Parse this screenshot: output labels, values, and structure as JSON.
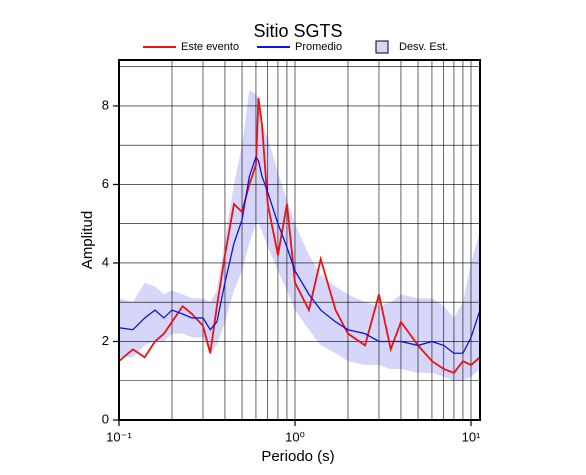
{
  "chart_data": {
    "type": "line",
    "title": "Sitio SGTS",
    "xlabel": "Periodo (s)",
    "ylabel": "Amplitud",
    "xscale": "log",
    "xlim": [
      0.1,
      11.25
    ],
    "ylim": [
      0,
      9.17
    ],
    "xticks": [
      {
        "value": 0.1,
        "label": "10⁻¹"
      },
      {
        "value": 1,
        "label": "10⁰"
      },
      {
        "value": 10,
        "label": "10¹"
      }
    ],
    "yticks": [
      0,
      2,
      4,
      6,
      8
    ],
    "x_gridlines": [
      0.2,
      0.3,
      0.4,
      0.5,
      0.6,
      0.7,
      0.8,
      0.9,
      1,
      2,
      3,
      4,
      5,
      6,
      7,
      8,
      9,
      10
    ],
    "y_gridlines": [
      1,
      2,
      3,
      4,
      5,
      6,
      7,
      8,
      9
    ],
    "legend": "top",
    "x": [
      0.1,
      0.12,
      0.14,
      0.16,
      0.18,
      0.2,
      0.23,
      0.26,
      0.3,
      0.33,
      0.36,
      0.4,
      0.45,
      0.5,
      0.55,
      0.6,
      0.62,
      0.65,
      0.7,
      0.8,
      0.9,
      1.0,
      1.2,
      1.4,
      1.7,
      2.0,
      2.5,
      3.0,
      3.5,
      4,
      5,
      6,
      7,
      8,
      9,
      10,
      11.25
    ],
    "band": {
      "name": "Desv. Est.",
      "color": "#d6d6fa",
      "upper": [
        3.1,
        3.0,
        3.5,
        3.4,
        3.2,
        3.3,
        3.2,
        3.1,
        3.1,
        3.0,
        3.3,
        4.6,
        6.0,
        7.0,
        8.4,
        8.3,
        8.2,
        7.5,
        7.2,
        6.3,
        5.6,
        5.0,
        4.2,
        3.7,
        3.4,
        3.2,
        3.0,
        2.9,
        3.0,
        3.2,
        3.1,
        3.1,
        2.9,
        2.6,
        3.0,
        4.0,
        4.8
      ],
      "lower": [
        1.6,
        1.6,
        1.9,
        2.0,
        2.0,
        2.2,
        2.2,
        2.1,
        2.1,
        1.7,
        1.9,
        2.5,
        3.3,
        3.8,
        4.5,
        5.0,
        5.0,
        4.8,
        4.4,
        3.8,
        3.3,
        2.8,
        2.3,
        1.9,
        1.7,
        1.5,
        1.4,
        1.4,
        1.3,
        1.3,
        1.2,
        1.2,
        1.1,
        1.0,
        1.0,
        1.1,
        1.3
      ]
    },
    "series": [
      {
        "name": "Este evento",
        "color": "#ee1111",
        "values": [
          1.5,
          1.8,
          1.6,
          2.0,
          2.2,
          2.5,
          2.9,
          2.7,
          2.4,
          1.7,
          2.9,
          4.2,
          5.5,
          5.3,
          6.0,
          6.5,
          8.2,
          7.5,
          5.5,
          4.2,
          5.5,
          3.5,
          2.8,
          4.1,
          2.8,
          2.2,
          1.9,
          3.2,
          1.8,
          2.5,
          1.9,
          1.5,
          1.3,
          1.2,
          1.5,
          1.4,
          1.6
        ]
      },
      {
        "name": "Promedio",
        "color": "#1111dd",
        "values": [
          2.35,
          2.3,
          2.6,
          2.8,
          2.6,
          2.8,
          2.7,
          2.6,
          2.6,
          2.3,
          2.5,
          3.5,
          4.5,
          5.1,
          6.2,
          6.7,
          6.6,
          6.2,
          5.8,
          5.0,
          4.4,
          3.8,
          3.2,
          2.8,
          2.5,
          2.3,
          2.2,
          2.0,
          2.0,
          2.0,
          1.9,
          2.0,
          1.9,
          1.7,
          1.7,
          2.1,
          2.8
        ]
      }
    ]
  }
}
